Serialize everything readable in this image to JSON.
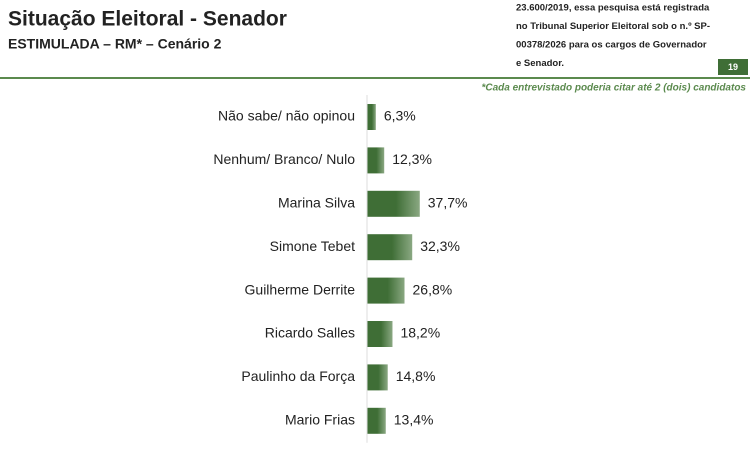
{
  "header": {
    "registration_lines": [
      "23.600/2019, essa pesquisa está registrada",
      "no Tribunal Superior Eleitoral sob o n.º SP-",
      "00378/2026 para os cargos de Governador",
      "e Senador."
    ],
    "page_number": "19"
  },
  "chart_data": {
    "type": "bar",
    "orientation": "horizontal",
    "title": "Situação Eleitoral - Senador",
    "subtitle": "ESTIMULADA – RM* – Cenário 2",
    "annotation": "*Cada entrevistado poderia citar até 2 (dois) candidatos",
    "categories": [
      "Não sabe/ não opinou",
      "Nenhum/ Branco/ Nulo",
      "Marina Silva",
      "Simone Tebet",
      "Guilherme Derrite",
      "Ricardo Salles",
      "Paulinho da Força",
      "Mario Frias"
    ],
    "values": [
      6.3,
      12.3,
      37.7,
      32.3,
      26.8,
      18.2,
      14.8,
      13.4
    ],
    "value_labels": [
      "6,3%",
      "12,3%",
      "37,7%",
      "32,3%",
      "26,8%",
      "18,2%",
      "14,8%",
      "13,4%"
    ],
    "color": "#3f6e36"
  }
}
